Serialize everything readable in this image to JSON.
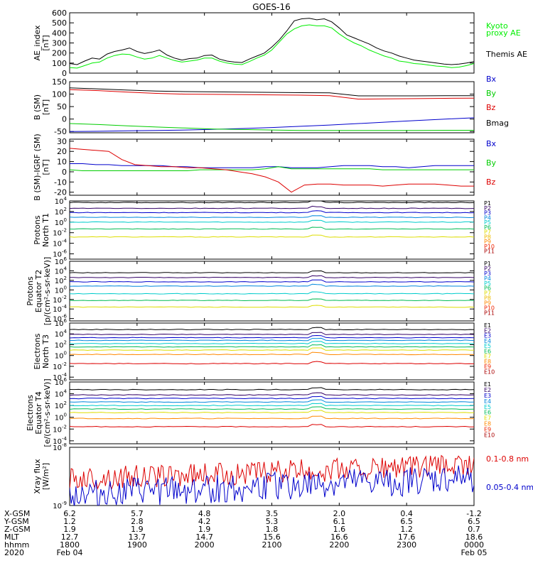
{
  "title": "GOES-16",
  "panels": [
    {
      "id": "ae",
      "ylabel": [
        "AE_index",
        "[nT]"
      ],
      "ylim": [
        0,
        600
      ],
      "ticks": [
        "0",
        "100",
        "200",
        "300",
        "400",
        "500",
        "600"
      ],
      "legend": [
        {
          "text": "Kyoto",
          "color": "#00ee00"
        },
        {
          "text": "proxy AE",
          "color": "#00ee00"
        },
        {
          "text": "Themis AE",
          "color": "#000000"
        }
      ],
      "series": [
        {
          "name": "Themis AE",
          "color": "#000000",
          "y": [
            95,
            85,
            120,
            150,
            140,
            190,
            215,
            230,
            250,
            215,
            195,
            210,
            230,
            180,
            150,
            130,
            145,
            150,
            175,
            180,
            140,
            120,
            110,
            105,
            140,
            170,
            200,
            260,
            330,
            420,
            520,
            540,
            545,
            530,
            540,
            510,
            450,
            380,
            350,
            320,
            290,
            250,
            220,
            200,
            170,
            150,
            130,
            120,
            110,
            100,
            90,
            85,
            90,
            100,
            115
          ]
        },
        {
          "name": "Kyoto proxy AE",
          "color": "#00ee00",
          "y": [
            55,
            50,
            75,
            100,
            110,
            150,
            175,
            190,
            185,
            160,
            140,
            150,
            175,
            150,
            125,
            110,
            120,
            130,
            150,
            150,
            120,
            100,
            90,
            85,
            115,
            150,
            180,
            230,
            310,
            390,
            440,
            470,
            480,
            470,
            470,
            450,
            390,
            340,
            300,
            270,
            230,
            200,
            170,
            150,
            120,
            110,
            95,
            90,
            80,
            70,
            65,
            55,
            60,
            75,
            95
          ]
        }
      ]
    },
    {
      "id": "bsm",
      "ylabel": [
        "B (SM)",
        "[nT]"
      ],
      "ylim": [
        -55,
        150
      ],
      "ticks": [
        "-50",
        "0",
        "50",
        "100",
        "150"
      ],
      "legend": [
        {
          "text": "Bx",
          "color": "#0000cc"
        },
        {
          "text": "By",
          "color": "#00cc00"
        },
        {
          "text": "Bz",
          "color": "#dd0000"
        },
        {
          "text": "Bmag",
          "color": "#000000"
        }
      ],
      "series": [
        {
          "name": "Bx",
          "color": "#0000cc",
          "y": [
            -50,
            -49,
            -47,
            -46,
            -44,
            -41,
            -38,
            -34,
            -29,
            -24,
            -18,
            -12,
            -6,
            0,
            5
          ]
        },
        {
          "name": "By",
          "color": "#00cc00",
          "y": [
            -18,
            -22,
            -27,
            -32,
            -36,
            -40,
            -42,
            -44,
            -46,
            -46,
            -46,
            -46,
            -46,
            -45,
            -45
          ]
        },
        {
          "name": "Bz",
          "color": "#dd0000",
          "y": [
            118,
            114,
            108,
            103,
            100,
            99,
            98,
            97,
            96,
            94,
            80,
            81,
            82,
            83,
            84
          ]
        },
        {
          "name": "Bmag",
          "color": "#000000",
          "y": [
            125,
            121,
            116,
            112,
            110,
            109,
            108,
            107,
            106,
            105,
            93,
            93,
            93,
            94,
            94
          ]
        }
      ]
    },
    {
      "id": "bsmigrf",
      "ylabel": [
        "B (SM)-IGRF (SM)",
        "[nT]"
      ],
      "ylim": [
        -23,
        32
      ],
      "ticks": [
        "-20",
        "-10",
        "0",
        "10",
        "20",
        "30"
      ],
      "legend": [
        {
          "text": "Bx",
          "color": "#0000cc"
        },
        {
          "text": "By",
          "color": "#00cc00"
        },
        {
          "text": "Bz",
          "color": "#dd0000"
        }
      ],
      "series": [
        {
          "name": "Bx",
          "color": "#0000cc",
          "y": [
            8,
            8,
            7,
            7,
            6,
            6,
            6,
            6,
            5,
            5,
            4,
            4,
            4,
            4,
            4,
            5,
            5,
            4,
            4,
            4,
            5,
            6,
            6,
            6,
            5,
            5,
            4,
            5,
            6,
            6,
            6,
            6
          ]
        },
        {
          "name": "By",
          "color": "#00cc00",
          "y": [
            2,
            1,
            1,
            1,
            1,
            1,
            1,
            1,
            1,
            1,
            2,
            2,
            2,
            2,
            2,
            3,
            5,
            3,
            3,
            3,
            3,
            3,
            3,
            3,
            2,
            2,
            2,
            2,
            2,
            2,
            2,
            2
          ]
        },
        {
          "name": "Bz",
          "color": "#dd0000",
          "y": [
            23,
            22,
            21,
            20,
            12,
            7,
            6,
            5,
            5,
            4,
            4,
            3,
            2,
            0,
            -2,
            -5,
            -10,
            -20,
            -13,
            -12,
            -12,
            -13,
            -13,
            -13,
            -14,
            -13,
            -12,
            -12,
            -12,
            -13,
            -14,
            -14
          ]
        }
      ]
    },
    {
      "id": "pnt1",
      "ylabel": [
        "Protons",
        "North T1"
      ],
      "log": true,
      "ylim": [
        -7,
        4
      ],
      "ticks": [
        {
          "e": "4",
          "v": 4
        },
        {
          "e": "2",
          "v": 2
        },
        {
          "e": "0",
          "v": 0
        },
        {
          "e": "-2",
          "v": -2
        },
        {
          "e": "-4",
          "v": -4
        },
        {
          "e": "-6",
          "v": -6
        }
      ],
      "legend": [
        {
          "text": "P1",
          "color": "#000000"
        },
        {
          "text": "P2",
          "color": "#330066"
        },
        {
          "text": "P3",
          "color": "#0000cc"
        },
        {
          "text": "P4",
          "color": "#0088dd"
        },
        {
          "text": "P5",
          "color": "#00cccc"
        },
        {
          "text": "P6",
          "color": "#00bb55"
        },
        {
          "text": "P7",
          "color": "#dddd00"
        },
        {
          "text": "P8",
          "color": "#eebb00"
        },
        {
          "text": "P9",
          "color": "#ff8800"
        },
        {
          "text": "P10",
          "color": "#ee2200"
        },
        {
          "text": "P11",
          "color": "#aa0000"
        }
      ],
      "series": [
        {
          "name": "P1",
          "color": "#000000",
          "levels": [
            3.7
          ]
        },
        {
          "name": "P2",
          "color": "#330066",
          "levels": [
            2.6
          ]
        },
        {
          "name": "P3",
          "color": "#0000cc",
          "levels": [
            1.8
          ]
        },
        {
          "name": "P4",
          "color": "#0088dd",
          "levels": [
            0.9
          ]
        },
        {
          "name": "P5",
          "color": "#00cccc",
          "levels": [
            0.0
          ]
        },
        {
          "name": "P6",
          "color": "#00bb55",
          "levels": [
            -1.3
          ]
        },
        {
          "name": "P7",
          "color": "#dddd00",
          "levels": [
            -2.8
          ]
        }
      ]
    },
    {
      "id": "pet2",
      "ylabel": [
        "Protons",
        "Equator T2",
        "[p/(cm²-s-sr-keV)]"
      ],
      "log": true,
      "ylim": [
        -6.5,
        6
      ],
      "ticks": [
        {
          "e": "6",
          "v": 6
        },
        {
          "e": "4",
          "v": 4
        },
        {
          "e": "2",
          "v": 2
        },
        {
          "e": "0",
          "v": 0
        },
        {
          "e": "-2",
          "v": -2
        },
        {
          "e": "-4",
          "v": -4
        },
        {
          "e": "-6",
          "v": -6
        }
      ],
      "legend": [
        {
          "text": "P1",
          "color": "#000000"
        },
        {
          "text": "P2",
          "color": "#330066"
        },
        {
          "text": "P3",
          "color": "#0000cc"
        },
        {
          "text": "P4",
          "color": "#0088dd"
        },
        {
          "text": "P5",
          "color": "#00cccc"
        },
        {
          "text": "P6",
          "color": "#00bb55"
        },
        {
          "text": "P7",
          "color": "#dddd00"
        },
        {
          "text": "P8",
          "color": "#eebb00"
        },
        {
          "text": "P9",
          "color": "#ff8800"
        },
        {
          "text": "P10",
          "color": "#ee2200"
        },
        {
          "text": "P11",
          "color": "#aa0000"
        }
      ],
      "series": [
        {
          "name": "P1",
          "color": "#000000",
          "levels": [
            3.6
          ]
        },
        {
          "name": "P2",
          "color": "#330066",
          "levels": [
            2.6
          ]
        },
        {
          "name": "P3",
          "color": "#0000cc",
          "levels": [
            1.7
          ]
        },
        {
          "name": "P4",
          "color": "#0088dd",
          "levels": [
            0.8
          ]
        },
        {
          "name": "P5",
          "color": "#00cccc",
          "levels": [
            -0.8
          ]
        },
        {
          "name": "P6",
          "color": "#00bb55",
          "levels": [
            -2.2
          ]
        },
        {
          "name": "P7",
          "color": "#dddd00",
          "levels": [
            -3.6
          ]
        }
      ]
    },
    {
      "id": "ent3",
      "ylabel": [
        "Electrons",
        "North T3"
      ],
      "log": true,
      "ylim": [
        -4.5,
        6
      ],
      "ticks": [
        {
          "e": "6",
          "v": 6
        },
        {
          "e": "4",
          "v": 4
        },
        {
          "e": "2",
          "v": 2
        },
        {
          "e": "0",
          "v": 0
        },
        {
          "e": "-2",
          "v": -2
        },
        {
          "e": "-4",
          "v": -4
        }
      ],
      "legend": [
        {
          "text": "E1",
          "color": "#000000"
        },
        {
          "text": "E2",
          "color": "#330066"
        },
        {
          "text": "E3",
          "color": "#0000cc"
        },
        {
          "text": "E4",
          "color": "#0088dd"
        },
        {
          "text": "E5",
          "color": "#00cccc"
        },
        {
          "text": "E6",
          "color": "#00bb55"
        },
        {
          "text": "E7",
          "color": "#dddd00"
        },
        {
          "text": "E8",
          "color": "#ff8800"
        },
        {
          "text": "E9",
          "color": "#ee2200"
        },
        {
          "text": "E10",
          "color": "#aa0000"
        }
      ],
      "series": [
        {
          "name": "E1",
          "color": "#000000",
          "levels": [
            4.8
          ]
        },
        {
          "name": "E2",
          "color": "#330066",
          "levels": [
            3.9
          ]
        },
        {
          "name": "E3",
          "color": "#0000cc",
          "levels": [
            3.3
          ]
        },
        {
          "name": "E4",
          "color": "#0088dd",
          "levels": [
            2.8
          ]
        },
        {
          "name": "E5",
          "color": "#00cccc",
          "levels": [
            2.2
          ]
        },
        {
          "name": "E6",
          "color": "#00bb55",
          "levels": [
            1.6
          ]
        },
        {
          "name": "E7",
          "color": "#dddd00",
          "levels": [
            1.0
          ]
        },
        {
          "name": "E8",
          "color": "#ff8800",
          "levels": [
            0.2
          ]
        },
        {
          "name": "E9",
          "color": "#dd0000",
          "levels": [
            -1.5
          ]
        }
      ]
    },
    {
      "id": "eet4",
      "ylabel": [
        "Electrons",
        "Equator T4",
        "[e/(cm²-s-sr-keV)]"
      ],
      "log": true,
      "ylim": [
        -4.5,
        6
      ],
      "ticks": [
        {
          "e": "6",
          "v": 6
        },
        {
          "e": "4",
          "v": 4
        },
        {
          "e": "2",
          "v": 2
        },
        {
          "e": "0",
          "v": 0
        },
        {
          "e": "-2",
          "v": -2
        },
        {
          "e": "-4",
          "v": -4
        }
      ],
      "legend": [
        {
          "text": "E1",
          "color": "#000000"
        },
        {
          "text": "E2",
          "color": "#330066"
        },
        {
          "text": "E3",
          "color": "#0000cc"
        },
        {
          "text": "E4",
          "color": "#0088dd"
        },
        {
          "text": "E5",
          "color": "#00cccc"
        },
        {
          "text": "E6",
          "color": "#00bb55"
        },
        {
          "text": "E7",
          "color": "#dddd00"
        },
        {
          "text": "E8",
          "color": "#ff8800"
        },
        {
          "text": "E9",
          "color": "#ee2200"
        },
        {
          "text": "E10",
          "color": "#aa0000"
        }
      ],
      "series": [
        {
          "name": "E1",
          "color": "#000000",
          "levels": [
            4.7
          ]
        },
        {
          "name": "E2",
          "color": "#330066",
          "levels": [
            3.8
          ]
        },
        {
          "name": "E3",
          "color": "#0000cc",
          "levels": [
            3.2
          ]
        },
        {
          "name": "E4",
          "color": "#0088dd",
          "levels": [
            2.6
          ]
        },
        {
          "name": "E5",
          "color": "#00cccc",
          "levels": [
            2.0
          ]
        },
        {
          "name": "E6",
          "color": "#00bb55",
          "levels": [
            1.4
          ]
        },
        {
          "name": "E7",
          "color": "#dddd00",
          "levels": [
            0.8
          ]
        },
        {
          "name": "E8",
          "color": "#ff8800",
          "levels": [
            -0.2
          ]
        },
        {
          "name": "E9",
          "color": "#dd0000",
          "levels": [
            -1.6
          ]
        }
      ]
    },
    {
      "id": "xray",
      "ylabel": [
        "Xray flux",
        "[W/m²]"
      ],
      "log": true,
      "ylim": [
        -9,
        -8
      ],
      "ticks": [
        {
          "e": "-8",
          "v": -8
        },
        {
          "e": "-9",
          "v": -9
        }
      ],
      "legend": [
        {
          "text": "0.1-0.8 nm",
          "color": "#dd0000"
        },
        {
          "text": "0.05-0.4 nm",
          "color": "#0000cc"
        }
      ],
      "series": [
        {
          "name": "0.1-0.8 nm",
          "color": "#dd0000",
          "mean": -8.55,
          "noise": 0.2
        },
        {
          "name": "0.05-0.4 nm",
          "color": "#0000cc",
          "mean": -8.8,
          "noise": 0.25
        }
      ]
    }
  ],
  "orbit": {
    "rows": [
      {
        "label": "X-GSM",
        "values": [
          "6.2",
          "5.7",
          "4.8",
          "3.5",
          "2.0",
          "0.4",
          "-1.2"
        ]
      },
      {
        "label": "Y-GSM",
        "values": [
          "1.2",
          "2.8",
          "4.2",
          "5.3",
          "6.1",
          "6.5",
          "6.5"
        ]
      },
      {
        "label": "Z-GSM",
        "values": [
          "1.9",
          "1.9",
          "1.9",
          "1.8",
          "1.6",
          "1.2",
          "0.7"
        ]
      },
      {
        "label": "MLT",
        "values": [
          "12.7",
          "13.7",
          "14.7",
          "15.6",
          "16.6",
          "17.6",
          "18.6"
        ]
      },
      {
        "label": "hhmm",
        "values": [
          "1800",
          "1900",
          "2000",
          "2100",
          "2200",
          "2300",
          "0000"
        ]
      }
    ],
    "year": "2020",
    "date_start": "Feb 04",
    "date_end": "Feb 05"
  }
}
